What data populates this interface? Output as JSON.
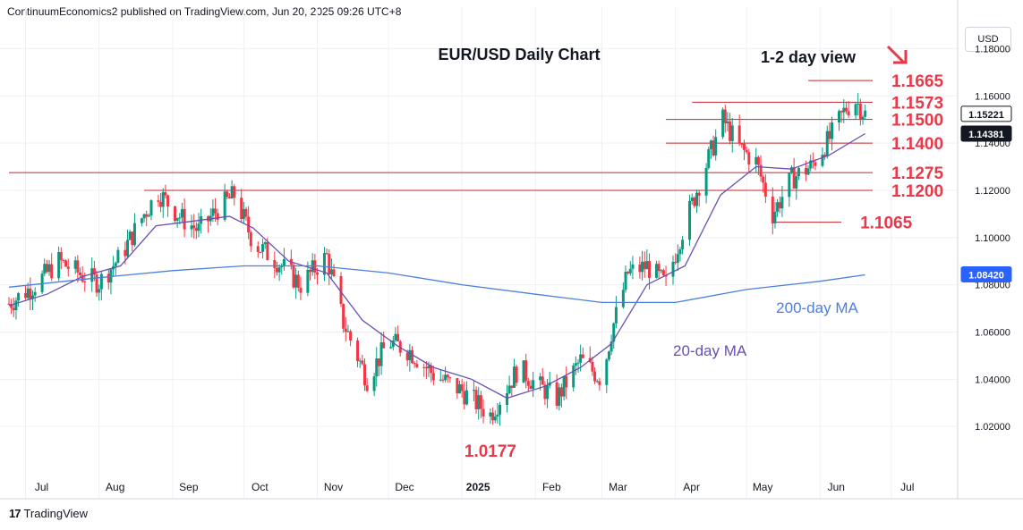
{
  "header": {
    "published": "ContinuumEconomics2 published on TradingView.com, Jun 20, 2025 09:26 UTC+8"
  },
  "footer": {
    "brand": "TradingView",
    "logo_glyph": "17"
  },
  "axis": {
    "currency": "USD"
  },
  "colors": {
    "up": "#089981",
    "down": "#f23645",
    "ma20": "#6a4fb3",
    "ma200": "#4a7fe0",
    "level": "#c2272d",
    "label": "#e8394a"
  },
  "chart_data": {
    "type": "candlestick",
    "title": "EUR/USD Daily Chart",
    "view_note": "1-2 day view",
    "view_direction": "down-right-arrow",
    "ylim": [
      1.0,
      1.19
    ],
    "y_ticks": [
      "1.02000",
      "1.04000",
      "1.06000",
      "1.08000",
      "1.10000",
      "1.12000",
      "1.14000",
      "1.16000",
      "1.18000"
    ],
    "x_ticks": [
      "Jul",
      "Aug",
      "Sep",
      "Oct",
      "Nov",
      "Dec",
      "2025",
      "Feb",
      "Mar",
      "Apr",
      "May",
      "Jun",
      "Jul"
    ],
    "price_tags": [
      {
        "value": 1.15221,
        "label": "1.15221",
        "style": "outline"
      },
      {
        "value": 1.14381,
        "label": "1.14381",
        "style": "filled"
      },
      {
        "value": 1.0842,
        "label": "1.08420",
        "style": "blue"
      }
    ],
    "levels": [
      {
        "label": "1.1665",
        "value": 1.1665,
        "from": "2025-05-27",
        "to": "2025-06-28"
      },
      {
        "label": "1.1573",
        "value": 1.1573,
        "from": "2025-04-08",
        "to": "2025-06-28"
      },
      {
        "label": "1.1500",
        "value": 1.15,
        "from": "2025-03-28",
        "to": "2025-06-28"
      },
      {
        "label": "1.1400",
        "value": 1.14,
        "from": "2025-03-28",
        "to": "2025-06-28"
      },
      {
        "label": "1.1275",
        "value": 1.1275,
        "from": "2024-06-24",
        "to": "2025-06-28"
      },
      {
        "label": "1.1200",
        "value": 1.12,
        "from": "2024-08-20",
        "to": "2025-06-28"
      },
      {
        "label": "1.1065",
        "value": 1.1065,
        "from": "2025-05-12",
        "to": "2025-06-10"
      }
    ],
    "low_annotation": {
      "label": "1.0177",
      "date": "2025-01-13",
      "value": 1.0177
    },
    "series": [
      {
        "name": "20-day MA",
        "points": [
          [
            "2024-06-24",
            1.0712
          ],
          [
            "2024-07-10",
            1.076
          ],
          [
            "2024-07-25",
            1.0835
          ],
          [
            "2024-08-10",
            1.088
          ],
          [
            "2024-08-25",
            1.105
          ],
          [
            "2024-09-10",
            1.107
          ],
          [
            "2024-09-25",
            1.109
          ],
          [
            "2024-10-05",
            1.104
          ],
          [
            "2024-10-20",
            1.09
          ],
          [
            "2024-11-05",
            1.085
          ],
          [
            "2024-11-20",
            1.065
          ],
          [
            "2024-12-05",
            1.054
          ],
          [
            "2024-12-20",
            1.045
          ],
          [
            "2025-01-05",
            1.04
          ],
          [
            "2025-01-20",
            1.032
          ],
          [
            "2025-02-05",
            1.037
          ],
          [
            "2025-02-20",
            1.045
          ],
          [
            "2025-03-05",
            1.055
          ],
          [
            "2025-03-20",
            1.08
          ],
          [
            "2025-04-05",
            1.088
          ],
          [
            "2025-04-20",
            1.118
          ],
          [
            "2025-05-05",
            1.13
          ],
          [
            "2025-05-20",
            1.129
          ],
          [
            "2025-06-05",
            1.135
          ],
          [
            "2025-06-20",
            1.144
          ]
        ]
      },
      {
        "name": "200-day MA",
        "points": [
          [
            "2024-06-24",
            1.079
          ],
          [
            "2024-08-01",
            1.083
          ],
          [
            "2024-09-01",
            1.086
          ],
          [
            "2024-10-01",
            1.088
          ],
          [
            "2024-11-01",
            1.088
          ],
          [
            "2024-12-01",
            1.085
          ],
          [
            "2025-01-01",
            1.08
          ],
          [
            "2025-02-01",
            1.076
          ],
          [
            "2025-03-01",
            1.0725
          ],
          [
            "2025-04-01",
            1.0725
          ],
          [
            "2025-05-01",
            1.078
          ],
          [
            "2025-06-01",
            1.0815
          ],
          [
            "2025-06-20",
            1.0842
          ]
        ]
      }
    ],
    "ohlc_path": [
      [
        "2024-06-24",
        1.072
      ],
      [
        "2024-07-05",
        1.08
      ],
      [
        "2024-07-15",
        1.09
      ],
      [
        "2024-07-25",
        1.084
      ],
      [
        "2024-08-01",
        1.081
      ],
      [
        "2024-08-10",
        1.092
      ],
      [
        "2024-08-20",
        1.11
      ],
      [
        "2024-08-26",
        1.119
      ],
      [
        "2024-09-05",
        1.108
      ],
      [
        "2024-09-12",
        1.103
      ],
      [
        "2024-09-20",
        1.112
      ],
      [
        "2024-09-27",
        1.118
      ],
      [
        "2024-10-05",
        1.098
      ],
      [
        "2024-10-15",
        1.09
      ],
      [
        "2024-10-25",
        1.08
      ],
      [
        "2024-11-01",
        1.088
      ],
      [
        "2024-11-05",
        1.092
      ],
      [
        "2024-11-12",
        1.064
      ],
      [
        "2024-11-22",
        1.04
      ],
      [
        "2024-12-01",
        1.056
      ],
      [
        "2024-12-10",
        1.052
      ],
      [
        "2024-12-20",
        1.042
      ],
      [
        "2025-01-01",
        1.035
      ],
      [
        "2025-01-13",
        1.025
      ],
      [
        "2025-01-25",
        1.045
      ],
      [
        "2025-02-01",
        1.038
      ],
      [
        "2025-02-10",
        1.032
      ],
      [
        "2025-02-20",
        1.048
      ],
      [
        "2025-03-01",
        1.04
      ],
      [
        "2025-03-05",
        1.06
      ],
      [
        "2025-03-12",
        1.085
      ],
      [
        "2025-03-20",
        1.088
      ],
      [
        "2025-03-28",
        1.08
      ],
      [
        "2025-04-03",
        1.1
      ],
      [
        "2025-04-10",
        1.12
      ],
      [
        "2025-04-21",
        1.15
      ],
      [
        "2025-04-28",
        1.138
      ],
      [
        "2025-05-05",
        1.132
      ],
      [
        "2025-05-12",
        1.11
      ],
      [
        "2025-05-20",
        1.125
      ],
      [
        "2025-05-28",
        1.13
      ],
      [
        "2025-06-05",
        1.142
      ],
      [
        "2025-06-12",
        1.155
      ],
      [
        "2025-06-16",
        1.158
      ],
      [
        "2025-06-20",
        1.1522
      ]
    ]
  },
  "labels": {
    "ma20": "20-day MA",
    "ma200": "200-day MA"
  }
}
